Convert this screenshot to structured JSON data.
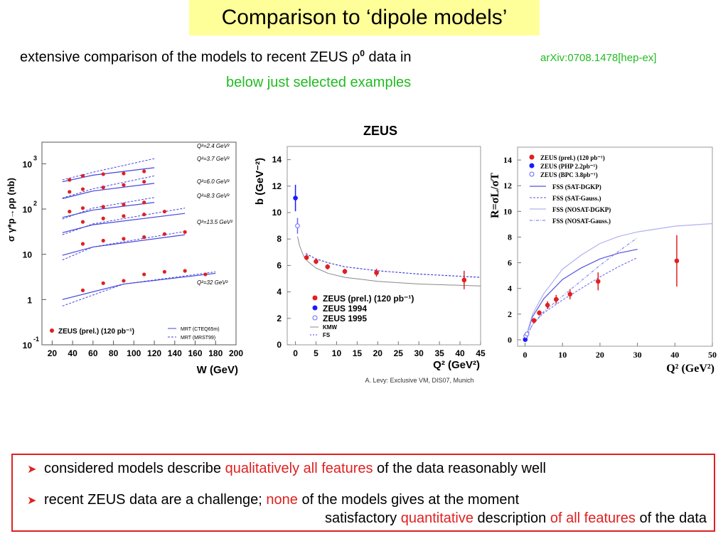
{
  "header": {
    "title": "Comparison to ‘dipole models’",
    "subtitle_pre": "extensive comparison of the models to recent ZEUS ρ",
    "subtitle_sup": "0",
    "subtitle_post": " data in",
    "reference": "arXiv:0708.1478[hep-ex]",
    "note": "below just selected examples"
  },
  "summary": {
    "bullet_icon": "arrow-right-icon",
    "items": [
      {
        "parts": [
          {
            "text": "considered models describe ",
            "highlight": false
          },
          {
            "text": "qualitatively all features",
            "highlight": true
          },
          {
            "text": " of the data reasonably well",
            "highlight": false
          }
        ]
      },
      {
        "parts": [
          {
            "text": "recent ZEUS data are a challenge; ",
            "highlight": false
          },
          {
            "text": "none",
            "highlight": true
          },
          {
            "text": " of the models gives at the moment",
            "highlight": false
          }
        ],
        "continuation": [
          {
            "text": "satisfactory ",
            "highlight": false
          },
          {
            "text": "quantitative",
            "highlight": true
          },
          {
            "text": " description ",
            "highlight": false
          },
          {
            "text": "of all features",
            "highlight": true
          },
          {
            "text": " of the data",
            "highlight": false
          }
        ]
      }
    ]
  },
  "colors": {
    "data": "#e02020",
    "model": "#4444dd",
    "highlight_bg": "#ffff99",
    "green": "#22bb22"
  },
  "chart_data": [
    {
      "type": "scatter",
      "title": "",
      "xlabel": "W (GeV)",
      "ylabel": "σ γ*p→ρp (nb)",
      "xlim": [
        10,
        200
      ],
      "ylim": [
        0.1,
        3000
      ],
      "yscale": "log",
      "xticks": [
        "20",
        "40",
        "60",
        "80",
        "100",
        "120",
        "140",
        "160",
        "180",
        "200"
      ],
      "yticks": [
        "10^-1",
        "1",
        "10",
        "10^2",
        "10^3"
      ],
      "legend": [
        "ZEUS (prel.) (120 pb⁻¹)",
        "MRT (CTEQ65m)",
        "MRT (MRST99)"
      ],
      "series": [
        {
          "name": "Q²=2.4 GeV²",
          "x": [
            37,
            50,
            70,
            90,
            110
          ],
          "y": [
            440,
            540,
            590,
            610,
            680
          ],
          "model_solid": [
            [
              30,
              400
            ],
            [
              60,
              560
            ],
            [
              120,
              820
            ]
          ],
          "model_dashed": [
            [
              30,
              440
            ],
            [
              60,
              650
            ],
            [
              120,
              1300
            ]
          ]
        },
        {
          "name": "Q²=3.7 GeV²",
          "x": [
            37,
            50,
            70,
            90,
            110
          ],
          "y": [
            240,
            275,
            300,
            340,
            400
          ],
          "model_solid": [
            [
              30,
              170
            ],
            [
              60,
              250
            ],
            [
              120,
              370
            ]
          ],
          "model_dashed": [
            [
              30,
              175
            ],
            [
              60,
              280
            ],
            [
              120,
              540
            ]
          ]
        },
        {
          "name": "Q²=6.0 GeV²",
          "x": [
            37,
            50,
            70,
            90,
            110
          ],
          "y": [
            88,
            105,
            112,
            125,
            140
          ],
          "model_solid": [
            [
              30,
              65
            ],
            [
              60,
              95
            ],
            [
              120,
              140
            ]
          ],
          "model_dashed": [
            [
              30,
              60
            ],
            [
              60,
              105
            ],
            [
              120,
              180
            ]
          ]
        },
        {
          "name": "Q²=8.3 GeV²",
          "x": [
            50,
            70,
            90,
            110,
            130
          ],
          "y": [
            52,
            62,
            70,
            76,
            88
          ],
          "model_solid": [
            [
              30,
              30
            ],
            [
              60,
              45
            ],
            [
              150,
              80
            ]
          ],
          "model_dashed": [
            [
              30,
              27
            ],
            [
              60,
              47
            ],
            [
              150,
              105
            ]
          ]
        },
        {
          "name": "Q²=13.5 GeV²",
          "x": [
            50,
            70,
            90,
            110,
            130,
            150
          ],
          "y": [
            17,
            20,
            22,
            24,
            28,
            31
          ],
          "model_solid": [
            [
              30,
              9.5
            ],
            [
              60,
              14.5
            ],
            [
              150,
              27
            ]
          ],
          "model_dashed": [
            [
              30,
              7.5
            ],
            [
              60,
              14.5
            ],
            [
              150,
              32
            ]
          ]
        },
        {
          "name": "Q²=32 GeV²",
          "x": [
            50,
            70,
            90,
            110,
            130,
            150,
            170
          ],
          "y": [
            1.6,
            2.3,
            2.6,
            3.6,
            4.1,
            4.3,
            3.6
          ],
          "model_solid": [
            [
              30,
              1.0
            ],
            [
              90,
              2.2
            ],
            [
              180,
              3.8
            ]
          ],
          "model_dashed": [
            [
              30,
              0.72
            ],
            [
              90,
              2.2
            ],
            [
              180,
              4.1
            ]
          ]
        }
      ]
    },
    {
      "type": "scatter",
      "title": "ZEUS",
      "xlabel": "Q² (GeV²)",
      "ylabel": "b (GeV⁻²)",
      "xlim": [
        -2,
        45
      ],
      "ylim": [
        0,
        15
      ],
      "xticks": [
        "0",
        "5",
        "10",
        "15",
        "20",
        "25",
        "30",
        "35",
        "40",
        "45"
      ],
      "yticks": [
        "0",
        "2",
        "4",
        "6",
        "8",
        "10",
        "12",
        "14"
      ],
      "footnote": "A. Levy: Exclusive VM, DIS07, Munich",
      "legend": [
        "ZEUS (prel.) (120 pb⁻¹)",
        "ZEUS 1994",
        "ZEUS 1995",
        "KMW",
        "FS"
      ],
      "series": [
        {
          "name": "ZEUS (prel.) (120 pb⁻¹)",
          "x": [
            2.7,
            5,
            7.8,
            12,
            19.7,
            41
          ],
          "y": [
            6.6,
            6.3,
            5.9,
            5.55,
            5.45,
            4.9
          ],
          "err": [
            0.2,
            0.2,
            0.2,
            0.2,
            0.3,
            0.7
          ]
        },
        {
          "name": "ZEUS 1994",
          "x": [
            0
          ],
          "y": [
            11.1
          ],
          "err": [
            1.0
          ]
        },
        {
          "name": "ZEUS 1995",
          "x": [
            0.5
          ],
          "y": [
            9.0
          ],
          "err": [
            0.6
          ]
        },
        {
          "name": "KMW",
          "x": [
            0.5,
            1,
            2,
            3,
            5,
            8,
            12,
            20,
            30,
            45
          ],
          "y": [
            8.2,
            7.5,
            6.7,
            6.3,
            5.8,
            5.4,
            5.1,
            4.8,
            4.6,
            4.45
          ]
        },
        {
          "name": "FS",
          "x": [
            2.5,
            5,
            8,
            12,
            20,
            30,
            45
          ],
          "y": [
            6.9,
            6.5,
            6.2,
            5.9,
            5.6,
            5.35,
            5.1
          ]
        }
      ]
    },
    {
      "type": "scatter",
      "title": "",
      "xlabel": "Q² (GeV²)",
      "ylabel": "R=σL/σT",
      "xlim": [
        -2,
        50
      ],
      "ylim": [
        -0.5,
        15
      ],
      "xticks": [
        "0",
        "10",
        "20",
        "30",
        "40",
        "50"
      ],
      "yticks": [
        "0",
        "2",
        "4",
        "6",
        "8",
        "10",
        "12",
        "14"
      ],
      "legend": [
        "ZEUS (prel.) (120 pb⁻¹)",
        "ZEUS (PHP 2.2pb⁻¹)",
        "ZEUS (BPC 3.8pb⁻¹)",
        "FSS (SAT-DGKP)",
        "FSS (SAT-Gauss.)",
        "FSS (NOSAT-DGKP)",
        "FSS (NOSAT-Gauss.)"
      ],
      "series": [
        {
          "name": "ZEUS (prel.) (120 pb⁻¹)",
          "x": [
            2.4,
            3.8,
            6,
            8.3,
            12,
            19.5,
            40.5
          ],
          "y": [
            1.5,
            2.1,
            2.7,
            3.15,
            3.55,
            4.55,
            6.15
          ],
          "err": [
            0.2,
            0.2,
            0.3,
            0.35,
            0.4,
            0.7,
            2.0
          ]
        },
        {
          "name": "ZEUS (PHP 2.2pb⁻¹)",
          "x": [
            0.05
          ],
          "y": [
            0.02
          ],
          "err": [
            0
          ]
        },
        {
          "name": "ZEUS (BPC 3.8pb⁻¹)",
          "x": [
            0.2,
            0.5
          ],
          "y": [
            0.3,
            0.45
          ],
          "err": [
            0
          ]
        },
        {
          "name": "FSS (SAT-DGKP)",
          "x": [
            0,
            2,
            5,
            10,
            15,
            20,
            25,
            30
          ],
          "y": [
            0,
            1.8,
            3.2,
            4.7,
            5.6,
            6.3,
            6.75,
            7.05
          ]
        },
        {
          "name": "FSS (SAT-Gauss.)",
          "x": [
            0,
            2,
            5,
            10,
            15,
            20,
            25,
            30
          ],
          "y": [
            0,
            1.2,
            2.1,
            3.1,
            4.0,
            4.9,
            5.7,
            6.4
          ]
        },
        {
          "name": "FSS (NOSAT-DGKP)",
          "x": [
            0,
            2,
            5,
            10,
            15,
            20,
            25,
            30,
            40,
            50
          ],
          "y": [
            0,
            2.0,
            3.6,
            5.5,
            6.6,
            7.5,
            8.05,
            8.4,
            8.85,
            9.05
          ]
        },
        {
          "name": "FSS (NOSAT-Gauss.)",
          "x": [
            0,
            2,
            5,
            10,
            15,
            20,
            25,
            30
          ],
          "y": [
            0,
            1.2,
            2.2,
            3.4,
            4.6,
            5.8,
            6.9,
            7.95
          ]
        }
      ]
    }
  ]
}
